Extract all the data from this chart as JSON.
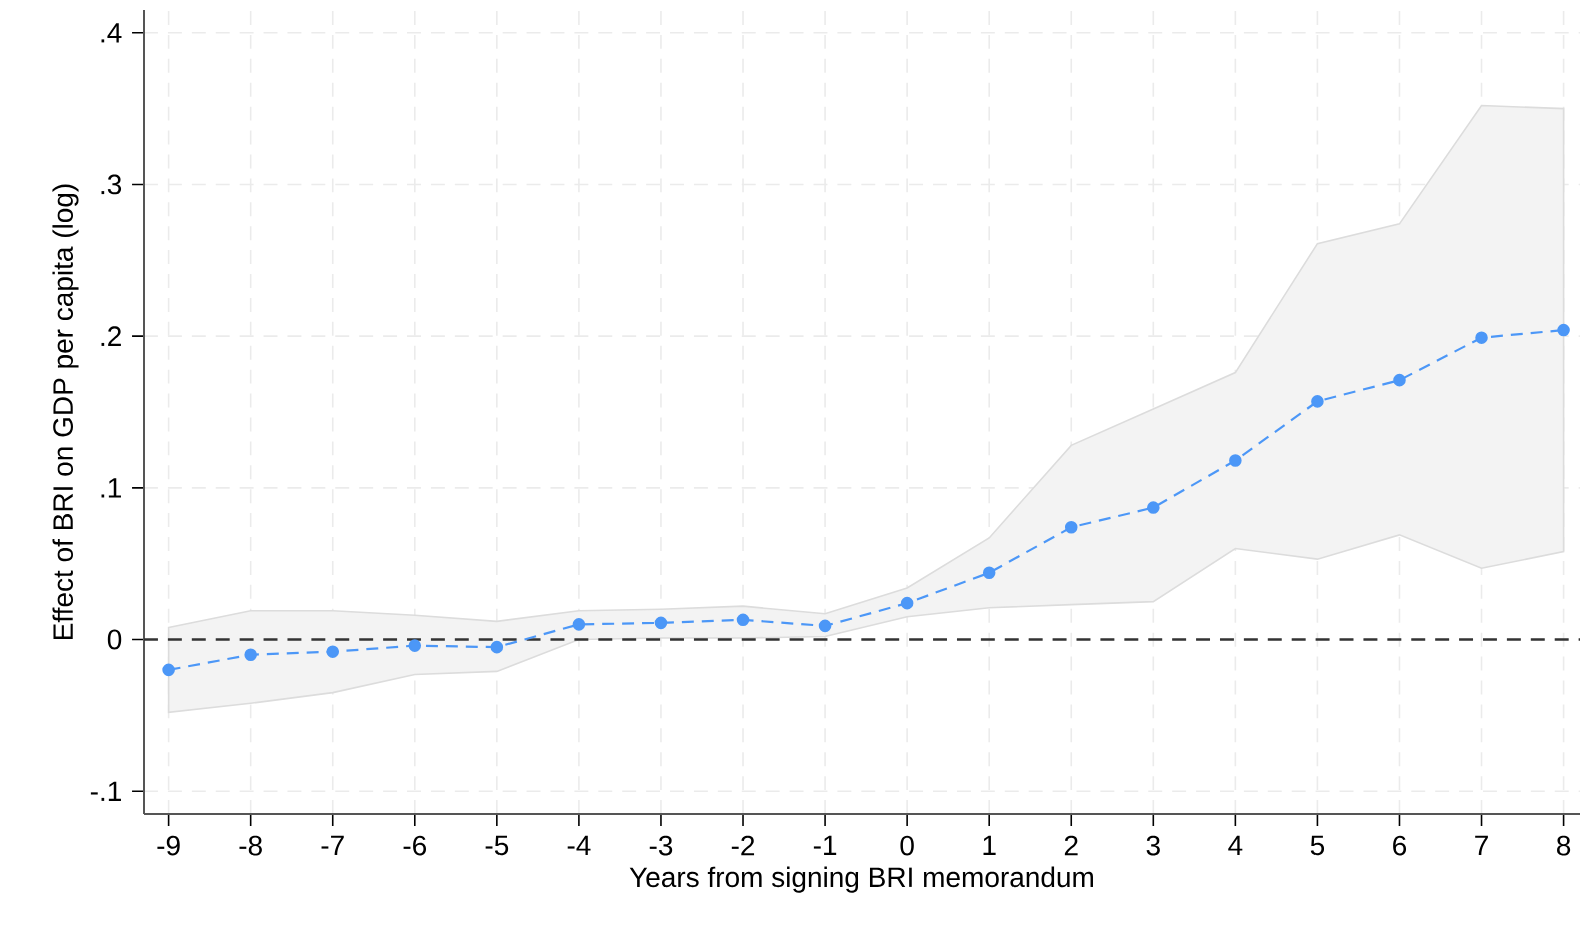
{
  "chart_data": {
    "type": "line",
    "xlabel": "Years from signing BRI memorandum",
    "ylabel": "Effect of BRI on GDP per capita (log)",
    "x": [
      -9,
      -8,
      -7,
      -6,
      -5,
      -4,
      -3,
      -2,
      -1,
      0,
      1,
      2,
      3,
      4,
      5,
      6,
      7,
      8
    ],
    "series": [
      {
        "color": "#4c97f7",
        "values": [
          -0.02,
          -0.01,
          -0.008,
          -0.004,
          -0.005,
          0.01,
          0.011,
          0.013,
          0.009,
          0.024,
          0.044,
          0.074,
          0.087,
          0.118,
          0.157,
          0.171,
          0.199,
          0.204
        ],
        "lower": [
          -0.048,
          -0.042,
          -0.035,
          -0.023,
          -0.021,
          0.0,
          0.001,
          0.001,
          0.002,
          0.015,
          0.021,
          0.023,
          0.025,
          0.06,
          0.053,
          0.069,
          0.047,
          0.058
        ],
        "upper": [
          0.008,
          0.019,
          0.019,
          0.016,
          0.012,
          0.019,
          0.02,
          0.022,
          0.017,
          0.034,
          0.067,
          0.128,
          0.152,
          0.176,
          0.261,
          0.274,
          0.352,
          0.35
        ]
      }
    ],
    "xlim": [
      -9.3,
      8.2
    ],
    "ylim": [
      -0.115,
      0.415
    ],
    "xticks": [
      -9,
      -8,
      -7,
      -6,
      -5,
      -4,
      -3,
      -2,
      -1,
      0,
      1,
      2,
      3,
      4,
      5,
      6,
      7,
      8
    ],
    "yticks": [
      {
        "value": -0.1,
        "label": "-.1"
      },
      {
        "value": 0,
        "label": "0"
      },
      {
        "value": 0.1,
        "label": ".1"
      },
      {
        "value": 0.2,
        "label": ".2"
      },
      {
        "value": 0.3,
        "label": ".3"
      },
      {
        "value": 0.4,
        "label": ".4"
      }
    ],
    "ref_lines": [
      {
        "axis": "y",
        "value": 0,
        "color": "#333333",
        "line_style": "dashed"
      }
    ],
    "grid": true,
    "marker": "circle",
    "line_style": "dashed"
  }
}
